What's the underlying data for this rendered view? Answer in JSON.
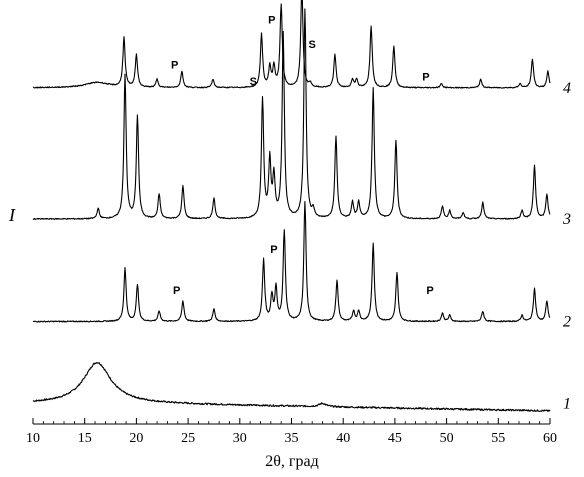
{
  "chart_data": {
    "type": "line",
    "title": "",
    "xlabel": "2θ, град",
    "ylabel": "I",
    "xlim": [
      10,
      60
    ],
    "xticks": [
      10,
      15,
      20,
      25,
      30,
      35,
      40,
      45,
      50,
      55,
      60
    ],
    "grid": false,
    "series": [
      {
        "name": "1",
        "baseline": 0.05,
        "peaks": [
          {
            "x": 16.2,
            "h": 0.1,
            "w": 1.6
          },
          {
            "x": 38.0,
            "h": 0.008,
            "w": 0.4
          }
        ]
      },
      {
        "name": "2",
        "baseline": 0.25,
        "peaks": [
          {
            "x": 18.9,
            "h": 0.13
          },
          {
            "x": 20.1,
            "h": 0.09
          },
          {
            "x": 22.2,
            "h": 0.025
          },
          {
            "x": 24.5,
            "h": 0.05
          },
          {
            "x": 27.5,
            "h": 0.03
          },
          {
            "x": 32.3,
            "h": 0.15
          },
          {
            "x": 33.1,
            "h": 0.06
          },
          {
            "x": 33.5,
            "h": 0.08
          },
          {
            "x": 34.3,
            "h": 0.22
          },
          {
            "x": 36.3,
            "h": 0.29
          },
          {
            "x": 39.4,
            "h": 0.1
          },
          {
            "x": 41.0,
            "h": 0.025
          },
          {
            "x": 41.5,
            "h": 0.025
          },
          {
            "x": 42.9,
            "h": 0.19
          },
          {
            "x": 45.2,
            "h": 0.12
          },
          {
            "x": 49.6,
            "h": 0.02
          },
          {
            "x": 50.3,
            "h": 0.015
          },
          {
            "x": 53.5,
            "h": 0.025
          },
          {
            "x": 57.3,
            "h": 0.015
          },
          {
            "x": 58.5,
            "h": 0.08
          },
          {
            "x": 59.7,
            "h": 0.05
          }
        ],
        "annotations": [
          {
            "text": "P",
            "x": 23.9,
            "y_offset": 0.06
          },
          {
            "text": "P",
            "x": 33.3,
            "y_offset": 0.16
          },
          {
            "text": "P",
            "x": 48.4,
            "y_offset": 0.06
          }
        ]
      },
      {
        "name": "3",
        "baseline": 0.5,
        "peaks": [
          {
            "x": 16.3,
            "h": 0.025
          },
          {
            "x": 18.9,
            "h": 0.35
          },
          {
            "x": 20.1,
            "h": 0.25
          },
          {
            "x": 22.2,
            "h": 0.06
          },
          {
            "x": 24.5,
            "h": 0.08
          },
          {
            "x": 27.5,
            "h": 0.05
          },
          {
            "x": 32.2,
            "h": 0.29
          },
          {
            "x": 32.9,
            "h": 0.14
          },
          {
            "x": 33.3,
            "h": 0.1
          },
          {
            "x": 34.2,
            "h": 0.45
          },
          {
            "x": 36.3,
            "h": 0.51
          },
          {
            "x": 37.1,
            "h": 0.02
          },
          {
            "x": 39.3,
            "h": 0.2
          },
          {
            "x": 40.9,
            "h": 0.04
          },
          {
            "x": 41.5,
            "h": 0.04
          },
          {
            "x": 42.9,
            "h": 0.32
          },
          {
            "x": 45.1,
            "h": 0.19
          },
          {
            "x": 49.6,
            "h": 0.03
          },
          {
            "x": 50.3,
            "h": 0.02
          },
          {
            "x": 51.6,
            "h": 0.015
          },
          {
            "x": 53.5,
            "h": 0.04
          },
          {
            "x": 57.3,
            "h": 0.02
          },
          {
            "x": 58.5,
            "h": 0.13
          },
          {
            "x": 59.7,
            "h": 0.06
          }
        ]
      },
      {
        "name": "4",
        "baseline": 0.82,
        "peaks": [
          {
            "x": 16.2,
            "h": 0.013,
            "w": 1.4
          },
          {
            "x": 18.8,
            "h": 0.12
          },
          {
            "x": 20.0,
            "h": 0.08
          },
          {
            "x": 22.0,
            "h": 0.02
          },
          {
            "x": 24.4,
            "h": 0.04
          },
          {
            "x": 27.4,
            "h": 0.02
          },
          {
            "x": 32.1,
            "h": 0.13
          },
          {
            "x": 32.9,
            "h": 0.05
          },
          {
            "x": 33.3,
            "h": 0.05
          },
          {
            "x": 34.0,
            "h": 0.2
          },
          {
            "x": 36.0,
            "h": 0.24
          },
          {
            "x": 36.8,
            "h": 0.01
          },
          {
            "x": 39.2,
            "h": 0.08
          },
          {
            "x": 40.9,
            "h": 0.02
          },
          {
            "x": 41.3,
            "h": 0.02
          },
          {
            "x": 42.7,
            "h": 0.15
          },
          {
            "x": 44.9,
            "h": 0.1
          },
          {
            "x": 49.5,
            "h": 0.01
          },
          {
            "x": 53.3,
            "h": 0.02
          },
          {
            "x": 57.1,
            "h": 0.01
          },
          {
            "x": 58.3,
            "h": 0.07
          },
          {
            "x": 59.8,
            "h": 0.04
          }
        ],
        "annotations": [
          {
            "text": "P",
            "x": 23.7,
            "y_offset": 0.04
          },
          {
            "text": "S",
            "x": 31.3,
            "y_offset": 0.0
          },
          {
            "text": "P",
            "x": 33.1,
            "y_offset": 0.15
          },
          {
            "text": "S",
            "x": 37.0,
            "y_offset": 0.09
          },
          {
            "text": "P",
            "x": 48.0,
            "y_offset": 0.01
          }
        ]
      }
    ]
  }
}
